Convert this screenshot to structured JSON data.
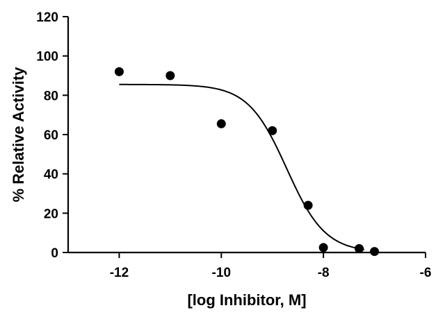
{
  "chart_data": {
    "type": "scatter",
    "title": "",
    "xlabel": "[log Inhibitor, M]",
    "ylabel": "% Relative  Activity",
    "xlim": [
      -13,
      -6
    ],
    "ylim": [
      0,
      120
    ],
    "xticks": [
      -12,
      -10,
      -8,
      -6
    ],
    "yticks": [
      0,
      20,
      40,
      60,
      80,
      100,
      120
    ],
    "xtick_labels": [
      "-12",
      "-10",
      "-8",
      "-6"
    ],
    "ytick_labels": [
      "0",
      "20",
      "40",
      "60",
      "80",
      "100",
      "120"
    ],
    "grid": false,
    "legend": "none",
    "points": [
      {
        "x": -12,
        "y": 92
      },
      {
        "x": -11,
        "y": 90
      },
      {
        "x": -10,
        "y": 65.5
      },
      {
        "x": -9,
        "y": 62
      },
      {
        "x": -8.3,
        "y": 24
      },
      {
        "x": -8,
        "y": 2.5
      },
      {
        "x": -7.3,
        "y": 2
      },
      {
        "x": -7,
        "y": 0.5
      }
    ],
    "fit_curve": {
      "model": "sigmoidal dose-response",
      "top": 85.5,
      "bottom": 0,
      "logIC50": -8.72,
      "hill_slope": -1.15,
      "x_range": [
        -12,
        -7.2
      ]
    },
    "colors": {
      "points": "#000000",
      "curve": "#000000",
      "axes": "#000000"
    }
  }
}
